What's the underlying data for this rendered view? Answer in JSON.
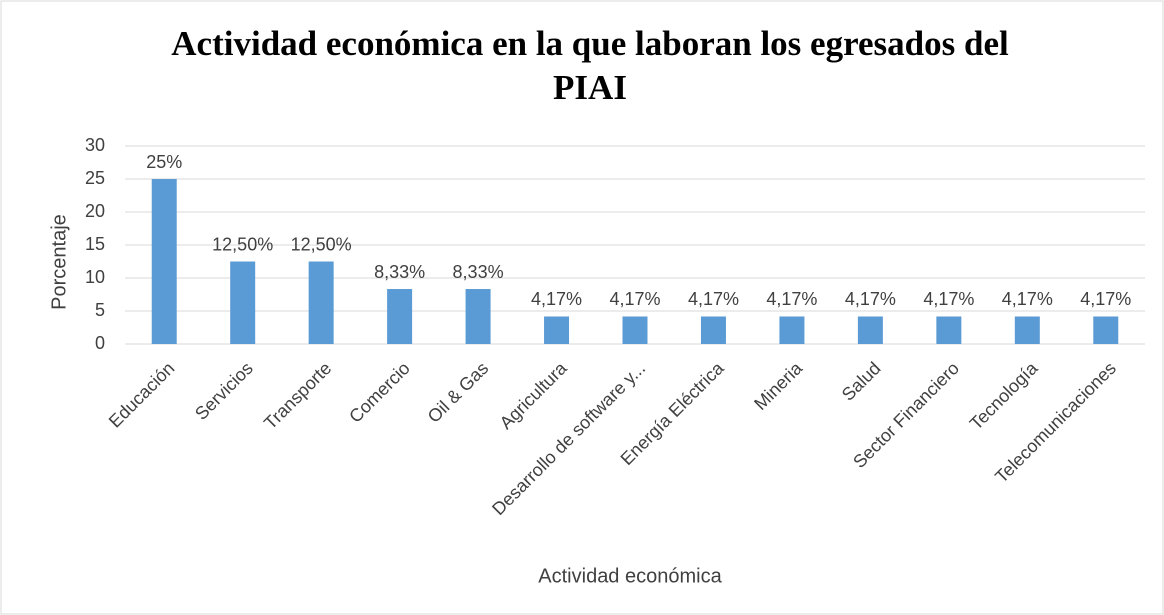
{
  "chart_data": {
    "type": "bar",
    "title": "Actividad económica en la que laboran los egresados del PIAI",
    "x_label": "Actividad económica",
    "y_label": "Porcentaje",
    "categories": [
      "Educación",
      "Servicios",
      "Transporte",
      "Comercio",
      "Oil & Gas",
      "Agricultura",
      "Desarrollo de software y...",
      "Energía Eléctrica",
      "Mineria",
      "Salud",
      "Sector Financiero",
      "Tecnología",
      "Telecomunicaciones"
    ],
    "values": [
      25,
      12.5,
      12.5,
      8.33,
      8.33,
      4.17,
      4.17,
      4.17,
      4.17,
      4.17,
      4.17,
      4.17,
      4.17
    ],
    "value_labels": [
      "25%",
      "12,50%",
      "12,50%",
      "8,33%",
      "8,33%",
      "4,17%",
      "4,17%",
      "4,17%",
      "4,17%",
      "4,17%",
      "4,17%",
      "4,17%",
      "4,17%"
    ],
    "color": "#5b9bd5",
    "ylim": [
      0,
      30
    ],
    "yticks": [
      0,
      5,
      10,
      15,
      20,
      25,
      30
    ],
    "grid": true
  }
}
